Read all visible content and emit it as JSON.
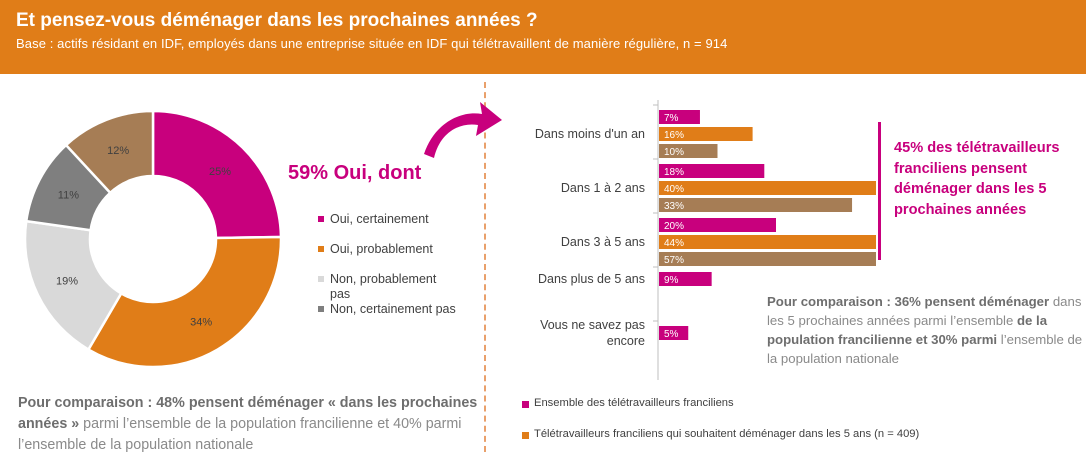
{
  "header": {
    "title": "Et pensez-vous déménager dans les prochaines années ?",
    "subtitle": "Base : actifs résidant en IDF, employés dans une entreprise située en IDF qui télétravaillent de manière régulière, n = 914"
  },
  "colors": {
    "header_bg": "#E07D18",
    "magenta": "#C8007D",
    "orange": "#E07D18",
    "brown": "#A67D55",
    "light_grey": "#D9D9D9",
    "dark_grey": "#7F7F7F"
  },
  "headline": "59% Oui, dont",
  "left_note": {
    "bold1": "Pour comparaison : 48% pensent déménager « dans les prochaines années »",
    "text1": " parmi l’ensemble de la population francilienne et 40% parmi l’ensemble de la population nationale"
  },
  "callout": "45% des télétravailleurs franciliens pensent déménager dans les 5 prochaines années",
  "right_note": {
    "bold1": "Pour comparaison : 36% pensent déménager",
    "text1": " dans les 5 prochaines années parmi l’ensemble ",
    "bold2": "de la population francilienne et 30% parmi",
    "text2": " l’ensemble de la population nationale"
  },
  "chart_data": [
    {
      "type": "pie",
      "donut": true,
      "slices": [
        {
          "label": "Oui, certainement",
          "value": 25,
          "display": "25%",
          "color": "#C8007D"
        },
        {
          "label": "Oui, probablement",
          "value": 34,
          "display": "34%",
          "color": "#E07D18"
        },
        {
          "label": "Non, probablement pas",
          "value": 19,
          "display": "19%",
          "color": "#D9D9D9"
        },
        {
          "label": "Non, certainement pas",
          "value": 11,
          "display": "11%",
          "color": "#7F7F7F"
        },
        {
          "label": "",
          "value": 12,
          "display": "12%",
          "color": "#A67D55"
        }
      ],
      "legend": [
        "Oui, certainement",
        "Oui, probablement",
        "Non, probablement pas",
        "Non, certainement pas"
      ],
      "legend_position": "right"
    },
    {
      "type": "bar",
      "orientation": "horizontal",
      "categories": [
        "Dans moins d'un an",
        "Dans 1 à 2 ans",
        "Dans 3 à 5 ans",
        "Dans plus de 5 ans",
        "Vous ne savez pas encore"
      ],
      "series": [
        {
          "name": "Ensemble des télétravailleurs franciliens",
          "color": "#C8007D",
          "values": [
            7,
            18,
            20,
            9,
            5
          ],
          "labels": [
            "7%",
            "18%",
            "20%",
            "9%",
            "5%"
          ]
        },
        {
          "name": "Télétravailleurs franciliens qui souhaitent déménager dans les 5 ans (n = 409)",
          "color": "#E07D18",
          "values": [
            16,
            40,
            44,
            null,
            null
          ],
          "labels": [
            "16%",
            "40%",
            "44%",
            "",
            ""
          ]
        },
        {
          "name": "",
          "color": "#A67D55",
          "values": [
            10,
            33,
            57,
            null,
            null
          ],
          "labels": [
            "10%",
            "33%",
            "57%",
            "",
            ""
          ]
        }
      ],
      "legend": [
        "Ensemble des télétravailleurs franciliens",
        "Télétravailleurs franciliens qui souhaitent déménager dans les 5 ans (n = 409)"
      ],
      "legend_position": "bottom",
      "xlim": [
        0,
        100
      ]
    }
  ]
}
